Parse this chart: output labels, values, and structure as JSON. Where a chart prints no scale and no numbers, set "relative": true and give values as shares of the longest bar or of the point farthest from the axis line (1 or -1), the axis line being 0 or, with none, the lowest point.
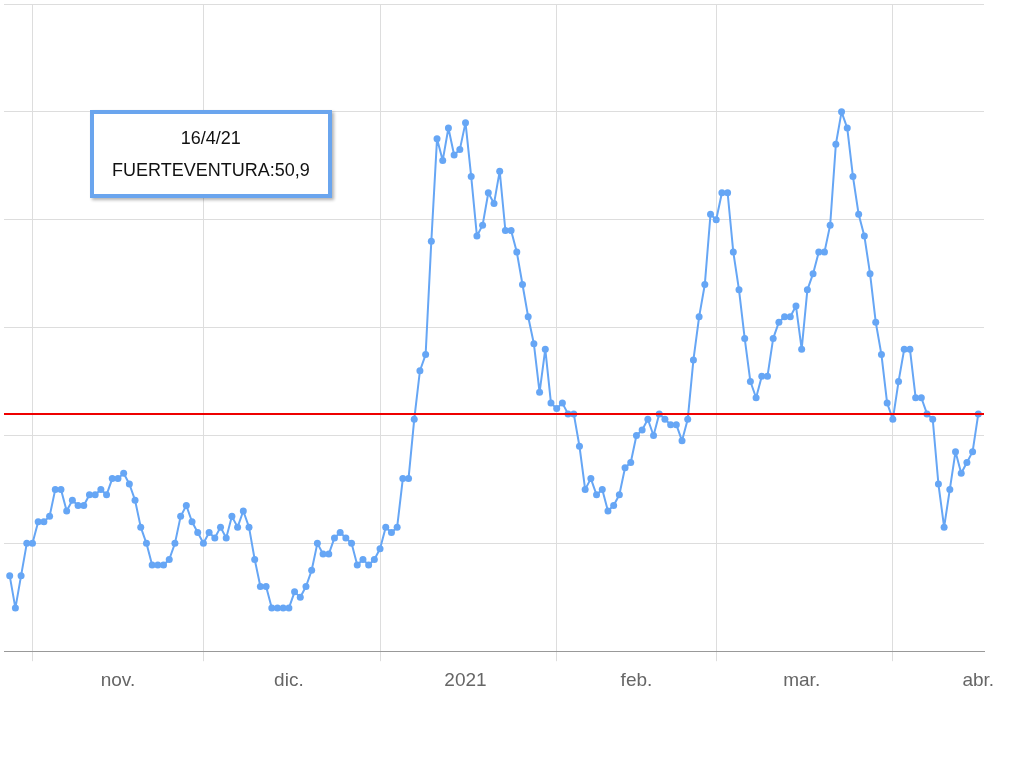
{
  "chart_data": {
    "type": "line",
    "relative": true,
    "grid": true,
    "marker": "circle",
    "xlim": [
      "2020-10-27",
      "2021-04-17"
    ],
    "xticks": [
      {
        "value": "2020-11-01",
        "label": null
      },
      {
        "value": "2020-11-16",
        "label": "nov."
      },
      {
        "value": "2020-12-01",
        "label": null
      },
      {
        "value": "2020-12-16",
        "label": "dic."
      },
      {
        "value": "2021-01-01",
        "label": null
      },
      {
        "value": "2021-01-16",
        "label": "2021"
      },
      {
        "value": "2021-02-01",
        "label": null
      },
      {
        "value": "2021-02-15",
        "label": "feb."
      },
      {
        "value": "2021-03-01",
        "label": null
      },
      {
        "value": "2021-03-16",
        "label": "mar."
      },
      {
        "value": "2021-04-01",
        "label": null
      },
      {
        "value": "2021-04-16",
        "label": "abr."
      }
    ],
    "ref_lines": [
      {
        "axis": "y",
        "value": 0.44,
        "color": "#ee0000"
      }
    ],
    "annotations": [
      "16/4/21",
      "FUERTEVENTURA:50,9"
    ],
    "series": [
      {
        "color": "#66a6f5",
        "x": [
          "2020-10-28",
          "2020-10-29",
          "2020-10-30",
          "2020-10-31",
          "2020-11-01",
          "2020-11-02",
          "2020-11-03",
          "2020-11-04",
          "2020-11-05",
          "2020-11-06",
          "2020-11-07",
          "2020-11-08",
          "2020-11-09",
          "2020-11-10",
          "2020-11-11",
          "2020-11-12",
          "2020-11-13",
          "2020-11-14",
          "2020-11-15",
          "2020-11-16",
          "2020-11-17",
          "2020-11-18",
          "2020-11-19",
          "2020-11-20",
          "2020-11-21",
          "2020-11-22",
          "2020-11-23",
          "2020-11-24",
          "2020-11-25",
          "2020-11-26",
          "2020-11-27",
          "2020-11-28",
          "2020-11-29",
          "2020-11-30",
          "2020-12-01",
          "2020-12-02",
          "2020-12-03",
          "2020-12-04",
          "2020-12-05",
          "2020-12-06",
          "2020-12-07",
          "2020-12-08",
          "2020-12-09",
          "2020-12-10",
          "2020-12-11",
          "2020-12-12",
          "2020-12-13",
          "2020-12-14",
          "2020-12-15",
          "2020-12-16",
          "2020-12-17",
          "2020-12-18",
          "2020-12-19",
          "2020-12-20",
          "2020-12-21",
          "2020-12-22",
          "2020-12-23",
          "2020-12-24",
          "2020-12-25",
          "2020-12-26",
          "2020-12-27",
          "2020-12-28",
          "2020-12-29",
          "2020-12-30",
          "2020-12-31",
          "2021-01-01",
          "2021-01-02",
          "2021-01-03",
          "2021-01-04",
          "2021-01-05",
          "2021-01-06",
          "2021-01-07",
          "2021-01-08",
          "2021-01-09",
          "2021-01-10",
          "2021-01-11",
          "2021-01-12",
          "2021-01-13",
          "2021-01-14",
          "2021-01-15",
          "2021-01-16",
          "2021-01-17",
          "2021-01-18",
          "2021-01-19",
          "2021-01-20",
          "2021-01-21",
          "2021-01-22",
          "2021-01-23",
          "2021-01-24",
          "2021-01-25",
          "2021-01-26",
          "2021-01-27",
          "2021-01-28",
          "2021-01-29",
          "2021-01-30",
          "2021-01-31",
          "2021-02-01",
          "2021-02-02",
          "2021-02-03",
          "2021-02-04",
          "2021-02-05",
          "2021-02-06",
          "2021-02-07",
          "2021-02-08",
          "2021-02-09",
          "2021-02-10",
          "2021-02-11",
          "2021-02-12",
          "2021-02-13",
          "2021-02-14",
          "2021-02-15",
          "2021-02-16",
          "2021-02-17",
          "2021-02-18",
          "2021-02-19",
          "2021-02-20",
          "2021-02-21",
          "2021-02-22",
          "2021-02-23",
          "2021-02-24",
          "2021-02-25",
          "2021-02-26",
          "2021-02-27",
          "2021-02-28",
          "2021-03-01",
          "2021-03-02",
          "2021-03-03",
          "2021-03-04",
          "2021-03-05",
          "2021-03-06",
          "2021-03-07",
          "2021-03-08",
          "2021-03-09",
          "2021-03-10",
          "2021-03-11",
          "2021-03-12",
          "2021-03-13",
          "2021-03-14",
          "2021-03-15",
          "2021-03-16",
          "2021-03-17",
          "2021-03-18",
          "2021-03-19",
          "2021-03-20",
          "2021-03-21",
          "2021-03-22",
          "2021-03-23",
          "2021-03-24",
          "2021-03-25",
          "2021-03-26",
          "2021-03-27",
          "2021-03-28",
          "2021-03-29",
          "2021-03-30",
          "2021-03-31",
          "2021-04-01",
          "2021-04-02",
          "2021-04-03",
          "2021-04-04",
          "2021-04-05",
          "2021-04-06",
          "2021-04-07",
          "2021-04-08",
          "2021-04-09",
          "2021-04-10",
          "2021-04-11",
          "2021-04-12",
          "2021-04-13",
          "2021-04-14",
          "2021-04-15",
          "2021-04-16"
        ],
        "values": [
          0.14,
          0.08,
          0.14,
          0.2,
          0.2,
          0.24,
          0.24,
          0.25,
          0.3,
          0.3,
          0.26,
          0.28,
          0.27,
          0.27,
          0.29,
          0.29,
          0.3,
          0.29,
          0.32,
          0.32,
          0.33,
          0.31,
          0.28,
          0.23,
          0.2,
          0.16,
          0.16,
          0.16,
          0.17,
          0.2,
          0.25,
          0.27,
          0.24,
          0.22,
          0.2,
          0.22,
          0.21,
          0.23,
          0.21,
          0.25,
          0.23,
          0.26,
          0.23,
          0.17,
          0.12,
          0.12,
          0.08,
          0.08,
          0.08,
          0.08,
          0.11,
          0.1,
          0.12,
          0.15,
          0.2,
          0.18,
          0.18,
          0.21,
          0.22,
          0.21,
          0.2,
          0.16,
          0.17,
          0.16,
          0.17,
          0.19,
          0.23,
          0.22,
          0.23,
          0.32,
          0.32,
          0.43,
          0.52,
          0.55,
          0.76,
          0.95,
          0.91,
          0.97,
          0.92,
          0.93,
          0.98,
          0.88,
          0.77,
          0.79,
          0.85,
          0.83,
          0.89,
          0.78,
          0.78,
          0.74,
          0.68,
          0.62,
          0.57,
          0.48,
          0.56,
          0.46,
          0.45,
          0.46,
          0.44,
          0.44,
          0.38,
          0.3,
          0.32,
          0.29,
          0.3,
          0.26,
          0.27,
          0.29,
          0.34,
          0.35,
          0.4,
          0.41,
          0.43,
          0.4,
          0.44,
          0.43,
          0.42,
          0.42,
          0.39,
          0.43,
          0.54,
          0.62,
          0.68,
          0.81,
          0.8,
          0.85,
          0.85,
          0.74,
          0.67,
          0.58,
          0.5,
          0.47,
          0.51,
          0.51,
          0.58,
          0.61,
          0.62,
          0.62,
          0.64,
          0.56,
          0.67,
          0.7,
          0.74,
          0.74,
          0.79,
          0.94,
          1,
          0.97,
          0.88,
          0.81,
          0.77,
          0.7,
          0.61,
          0.55,
          0.46,
          0.43,
          0.5,
          0.56,
          0.56,
          0.47,
          0.47,
          0.44,
          0.43,
          0.31,
          0.23,
          0.3,
          0.37,
          0.33,
          0.35,
          0.37,
          0.44
        ]
      }
    ]
  }
}
